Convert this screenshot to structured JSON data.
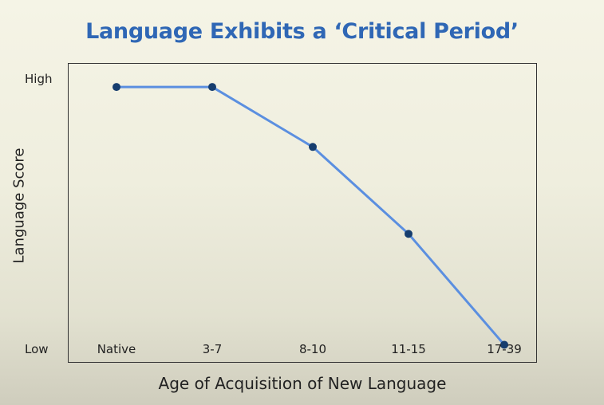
{
  "slide": {
    "title": "Language Exhibits a ‘Critical Period’"
  },
  "chart_data": {
    "type": "line",
    "title": "Language Exhibits a ‘Critical Period’",
    "xlabel": "Age of Acquisition of New Language",
    "ylabel": "Language Score",
    "categories": [
      "Native",
      "3-7",
      "8-10",
      "11-15",
      "17-39"
    ],
    "y_tick_labels": {
      "high": "High",
      "low": "Low"
    },
    "series": [
      {
        "values": [
          0.92,
          0.92,
          0.72,
          0.43,
          0.06
        ]
      }
    ],
    "ylim": [
      0,
      1
    ],
    "grid": false,
    "colors": {
      "line": "#5b8fe0",
      "marker": "#163d6e",
      "title": "#2f67b5"
    }
  }
}
